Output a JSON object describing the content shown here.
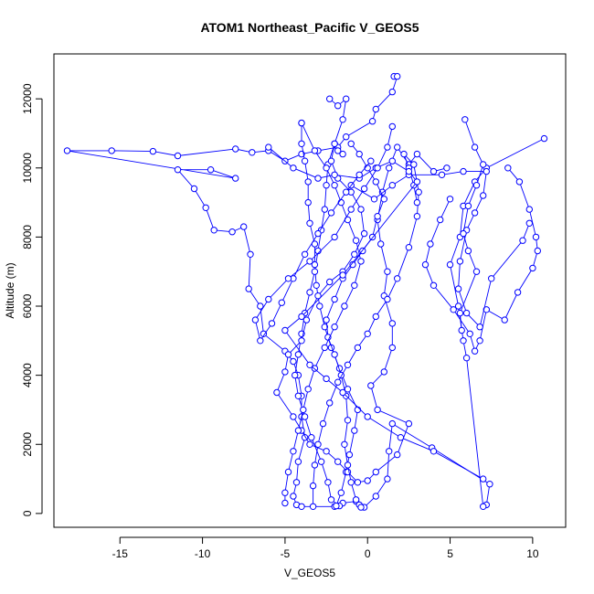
{
  "chart_data": {
    "type": "line",
    "title": "ATOM1 Northeast_Pacific V_GEOS5",
    "xlabel": "V_GEOS5",
    "ylabel": "Altitude (m)",
    "xlim": [
      -19,
      12
    ],
    "ylim": [
      -400,
      13300
    ],
    "xticks": [
      -15,
      -10,
      -5,
      0,
      5,
      10
    ],
    "yticks": [
      0,
      2000,
      4000,
      6000,
      8000,
      10000,
      12000
    ],
    "grid": false,
    "markers": "open-circle",
    "line_color": "#0000ff",
    "series": [
      {
        "values": [
          [
            1.6,
            12650
          ],
          [
            1.8,
            12650
          ],
          [
            1.5,
            12200
          ],
          [
            0.5,
            11700
          ],
          [
            0.3,
            11350
          ],
          [
            -1.3,
            10900
          ],
          [
            -1.8,
            10600
          ],
          [
            -3.0,
            10500
          ],
          [
            -4.0,
            10400
          ],
          [
            -5.0,
            10200
          ],
          [
            -6.0,
            10500
          ],
          [
            -7.0,
            10450
          ],
          [
            -8.0,
            10550
          ],
          [
            -11.5,
            10350
          ],
          [
            -13.0,
            10480
          ],
          [
            -15.5,
            10500
          ],
          [
            -18.2,
            10500
          ],
          [
            -8.0,
            9700
          ],
          [
            -9.5,
            9950
          ],
          [
            -11.5,
            9950
          ],
          [
            -10.5,
            9400
          ],
          [
            -9.8,
            8850
          ],
          [
            -9.3,
            8200
          ],
          [
            -8.2,
            8150
          ],
          [
            -7.5,
            8300
          ],
          [
            -7.1,
            7500
          ],
          [
            -7.2,
            6500
          ],
          [
            -6.5,
            6000
          ],
          [
            -6.3,
            5200
          ],
          [
            -5.0,
            4700
          ],
          [
            -4.5,
            4400
          ],
          [
            -4.2,
            4000
          ],
          [
            -4.0,
            3400
          ],
          [
            -4.0,
            2800
          ],
          [
            -3.8,
            2200
          ],
          [
            -4.2,
            1500
          ],
          [
            -4.3,
            900
          ],
          [
            -4.5,
            500
          ],
          [
            -4.3,
            250
          ],
          [
            -4.0,
            200
          ],
          [
            -2.0,
            200
          ],
          [
            -1.5,
            300
          ],
          [
            -0.7,
            350
          ],
          [
            -0.2,
            180
          ],
          [
            0.5,
            500
          ],
          [
            1.2,
            1000
          ],
          [
            1.3,
            1800
          ],
          [
            1.5,
            2600
          ],
          [
            3.9,
            1900
          ],
          [
            7.4,
            850
          ],
          [
            7.2,
            250
          ],
          [
            7.0,
            200
          ],
          [
            6.0,
            4500
          ],
          [
            5.8,
            5000
          ],
          [
            5.5,
            6000
          ],
          [
            5.0,
            7200
          ],
          [
            5.6,
            8000
          ],
          [
            5.8,
            8900
          ],
          [
            6.5,
            9600
          ],
          [
            7.2,
            10000
          ],
          [
            10.7,
            10850
          ]
        ]
      },
      {
        "values": [
          [
            -1.5,
            10400
          ],
          [
            -1.8,
            10500
          ],
          [
            -2.0,
            10700
          ],
          [
            -2.4,
            10100
          ],
          [
            -2.5,
            9500
          ],
          [
            -2.6,
            8800
          ],
          [
            -2.8,
            8200
          ],
          [
            -3.0,
            7600
          ],
          [
            -3.2,
            7000
          ],
          [
            -3.5,
            6400
          ],
          [
            -3.8,
            5800
          ],
          [
            -4.0,
            5200
          ],
          [
            -4.2,
            4600
          ],
          [
            -4.4,
            4000
          ],
          [
            -4.2,
            3400
          ],
          [
            -3.8,
            2800
          ],
          [
            -3.4,
            2200
          ],
          [
            -2.8,
            1500
          ],
          [
            -2.4,
            900
          ],
          [
            -2.2,
            400
          ],
          [
            -1.7,
            220
          ],
          [
            -1.9,
            220
          ],
          [
            -1.6,
            600
          ],
          [
            -1.3,
            1200
          ],
          [
            -1.1,
            1700
          ],
          [
            -0.8,
            2400
          ],
          [
            -0.6,
            3000
          ],
          [
            -1.2,
            3600
          ],
          [
            -1.7,
            4200
          ],
          [
            -2.2,
            4800
          ],
          [
            -2.6,
            5400
          ],
          [
            -2.9,
            6000
          ],
          [
            -3.1,
            6600
          ],
          [
            -3.2,
            7200
          ],
          [
            -3.2,
            7800
          ],
          [
            -3.5,
            8400
          ],
          [
            -3.6,
            9000
          ],
          [
            -3.6,
            9600
          ],
          [
            -3.8,
            10200
          ],
          [
            -4.0,
            10700
          ],
          [
            -4.0,
            11300
          ]
        ]
      },
      {
        "values": [
          [
            -2.3,
            12000
          ],
          [
            -1.8,
            11800
          ],
          [
            -1.3,
            12000
          ],
          [
            -1.5,
            11400
          ],
          [
            -2.0,
            10700
          ],
          [
            -2.2,
            10200
          ],
          [
            -1.8,
            9700
          ],
          [
            -1.0,
            9300
          ],
          [
            -0.4,
            8800
          ],
          [
            -0.2,
            8100
          ],
          [
            -0.8,
            7500
          ],
          [
            -1.5,
            7000
          ],
          [
            -2.3,
            6700
          ],
          [
            -3.0,
            6300
          ],
          [
            -3.7,
            5600
          ],
          [
            -4.0,
            5000
          ],
          [
            -4.8,
            4600
          ],
          [
            -5.0,
            4100
          ],
          [
            -5.5,
            3500
          ],
          [
            -4.5,
            2800
          ],
          [
            -4.0,
            2400
          ],
          [
            -3.5,
            2000
          ],
          [
            -2.5,
            1800
          ],
          [
            -1.8,
            1500
          ],
          [
            -1.2,
            1200
          ],
          [
            -0.6,
            900
          ],
          [
            0.0,
            950
          ],
          [
            0.5,
            1200
          ],
          [
            1.8,
            1700
          ],
          [
            2.5,
            2600
          ],
          [
            0.6,
            3000
          ],
          [
            0.2,
            3700
          ],
          [
            1.0,
            4100
          ],
          [
            1.5,
            4800
          ],
          [
            1.5,
            5500
          ],
          [
            1.0,
            6300
          ],
          [
            1.2,
            7000
          ],
          [
            0.8,
            7800
          ],
          [
            0.6,
            8500
          ],
          [
            0.9,
            9300
          ],
          [
            1.3,
            10000
          ],
          [
            1.8,
            10600
          ],
          [
            2.5,
            10100
          ],
          [
            3.0,
            10400
          ],
          [
            4.0,
            9900
          ],
          [
            4.8,
            10000
          ]
        ]
      },
      {
        "values": [
          [
            -1.0,
            10700
          ],
          [
            -0.5,
            10400
          ],
          [
            0.0,
            10000
          ],
          [
            0.5,
            9600
          ],
          [
            1.0,
            9100
          ],
          [
            0.6,
            8600
          ],
          [
            0.3,
            8000
          ],
          [
            -0.3,
            7600
          ],
          [
            -0.9,
            7200
          ],
          [
            -1.5,
            6800
          ],
          [
            -2.0,
            6200
          ],
          [
            -2.5,
            5600
          ],
          [
            -2.4,
            5100
          ],
          [
            -2.0,
            4600
          ],
          [
            -1.6,
            4000
          ],
          [
            -1.3,
            3400
          ],
          [
            -1.2,
            2700
          ],
          [
            -1.4,
            2000
          ],
          [
            -1.2,
            1400
          ],
          [
            -1.0,
            900
          ],
          [
            -0.7,
            400
          ],
          [
            -0.5,
            250
          ],
          [
            -0.4,
            180
          ]
        ]
      },
      {
        "values": [
          [
            3.0,
            9000
          ],
          [
            2.8,
            9500
          ],
          [
            2.5,
            10000
          ],
          [
            2.2,
            10400
          ],
          [
            2.8,
            10100
          ],
          [
            3.1,
            9300
          ],
          [
            3.0,
            8600
          ],
          [
            2.5,
            7700
          ],
          [
            1.8,
            6800
          ],
          [
            1.2,
            6200
          ],
          [
            0.5,
            5700
          ],
          [
            0.0,
            5200
          ],
          [
            -0.6,
            4800
          ],
          [
            -1.2,
            4300
          ],
          [
            -1.8,
            3800
          ],
          [
            -2.3,
            3200
          ],
          [
            -2.7,
            2600
          ],
          [
            -3.0,
            2000
          ],
          [
            -3.2,
            1400
          ],
          [
            -3.3,
            800
          ],
          [
            -3.3,
            200
          ]
        ]
      },
      {
        "values": [
          [
            5.0,
            9100
          ],
          [
            4.4,
            8500
          ],
          [
            3.8,
            7800
          ],
          [
            3.5,
            7200
          ],
          [
            4.0,
            6600
          ],
          [
            5.2,
            5900
          ],
          [
            6.2,
            5200
          ],
          [
            6.5,
            4700
          ],
          [
            6.8,
            5000
          ],
          [
            7.2,
            5900
          ],
          [
            8.3,
            5600
          ],
          [
            9.1,
            6400
          ],
          [
            10.0,
            7100
          ],
          [
            10.3,
            7600
          ],
          [
            10.2,
            8000
          ],
          [
            9.8,
            8800
          ],
          [
            9.2,
            9600
          ],
          [
            8.5,
            10000
          ]
        ]
      },
      {
        "values": [
          [
            -1.0,
            9500
          ],
          [
            0.4,
            9100
          ],
          [
            1.5,
            9500
          ],
          [
            2.5,
            9800
          ],
          [
            4.5,
            9800
          ],
          [
            5.8,
            9900
          ],
          [
            7.2,
            9900
          ],
          [
            7.0,
            9200
          ],
          [
            6.5,
            8700
          ],
          [
            6.0,
            8200
          ],
          [
            5.6,
            7300
          ],
          [
            5.5,
            6500
          ],
          [
            6.0,
            5800
          ],
          [
            6.8,
            5400
          ],
          [
            7.5,
            6800
          ],
          [
            9.4,
            7900
          ],
          [
            9.8,
            8400
          ]
        ]
      },
      {
        "values": [
          [
            5.9,
            11400
          ],
          [
            6.5,
            10600
          ],
          [
            7.0,
            10100
          ],
          [
            6.6,
            9500
          ],
          [
            6.1,
            8900
          ],
          [
            5.8,
            8100
          ],
          [
            6.1,
            7600
          ],
          [
            6.6,
            7000
          ],
          [
            5.6,
            5800
          ],
          [
            5.7,
            5300
          ]
        ]
      },
      {
        "values": [
          [
            -4.0,
            11300
          ],
          [
            -3.2,
            10500
          ],
          [
            -2.5,
            10000
          ],
          [
            -2.0,
            9500
          ],
          [
            -1.6,
            9000
          ],
          [
            -1.2,
            8500
          ],
          [
            -0.7,
            7900
          ],
          [
            -0.4,
            7300
          ],
          [
            -0.8,
            6600
          ],
          [
            -1.4,
            6000
          ],
          [
            -2.0,
            5400
          ],
          [
            -2.6,
            4800
          ],
          [
            -3.2,
            4200
          ],
          [
            -3.6,
            3600
          ],
          [
            -3.9,
            3000
          ],
          [
            -4.2,
            2400
          ],
          [
            -4.5,
            1800
          ],
          [
            -4.8,
            1200
          ],
          [
            -5.0,
            600
          ],
          [
            -5.0,
            300
          ]
        ]
      },
      {
        "values": [
          [
            -6.0,
            10600
          ],
          [
            -4.5,
            10000
          ],
          [
            -3.0,
            9700
          ],
          [
            -2.0,
            9800
          ],
          [
            -0.5,
            9700
          ],
          [
            0.5,
            10000
          ],
          [
            1.5,
            10200
          ],
          [
            2.5,
            9900
          ],
          [
            3.0,
            9600
          ],
          [
            -1.5,
            6900
          ],
          [
            -4.0,
            5700
          ],
          [
            -5.0,
            5300
          ],
          [
            -3.5,
            4300
          ],
          [
            -2.5,
            3900
          ],
          [
            -1.5,
            3500
          ],
          [
            0.0,
            2800
          ],
          [
            2.0,
            2200
          ],
          [
            4.0,
            1800
          ],
          [
            7.0,
            1000
          ]
        ]
      },
      {
        "values": [
          [
            0.2,
            10200
          ],
          [
            -0.5,
            9800
          ],
          [
            -1.3,
            9300
          ],
          [
            -2.2,
            8700
          ],
          [
            -3.0,
            8100
          ],
          [
            -3.8,
            7500
          ],
          [
            -4.5,
            6800
          ],
          [
            -5.2,
            6100
          ],
          [
            -5.8,
            5500
          ],
          [
            -6.5,
            5000
          ],
          [
            -6.8,
            5600
          ],
          [
            -6.0,
            6200
          ],
          [
            -4.8,
            6800
          ],
          [
            -3.5,
            7300
          ],
          [
            -2.0,
            8000
          ],
          [
            -1.0,
            8800
          ],
          [
            -0.2,
            9400
          ],
          [
            0.6,
            10000
          ],
          [
            1.2,
            10600
          ],
          [
            1.5,
            11200
          ]
        ]
      }
    ]
  }
}
